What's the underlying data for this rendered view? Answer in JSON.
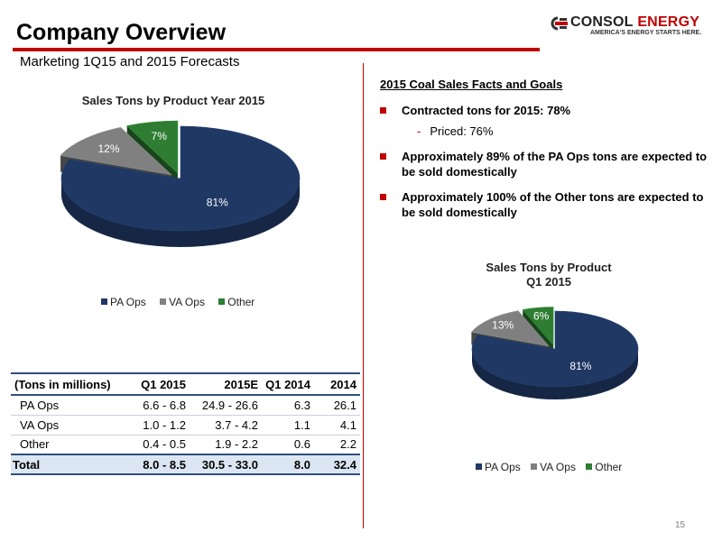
{
  "header": {
    "title": "Company Overview",
    "subtitle": "Marketing 1Q15 and 2015 Forecasts"
  },
  "logo": {
    "name_part1": "CONSOL",
    "name_part2": "ENERGY",
    "tagline": "AMERICA'S ENERGY STARTS HERE."
  },
  "colors": {
    "accent": "#c00000",
    "pa_ops": "#1f3864",
    "va_ops": "#808080",
    "other": "#2e7d32"
  },
  "chart_data": [
    {
      "type": "pie",
      "title": "Sales Tons by Product Year 2015",
      "categories": [
        "PA Ops",
        "VA Ops",
        "Other"
      ],
      "values": [
        81,
        12,
        7
      ],
      "data_labels": [
        "81%",
        "12%",
        "7%"
      ],
      "legend_position": "bottom"
    },
    {
      "type": "pie",
      "title": "Sales Tons by Product Q1 2015",
      "title_lines": [
        "Sales Tons by Product",
        "Q1 2015"
      ],
      "categories": [
        "PA Ops",
        "VA Ops",
        "Other"
      ],
      "values": [
        81,
        13,
        6
      ],
      "data_labels": [
        "81%",
        "13%",
        "6%"
      ],
      "legend_position": "bottom"
    },
    {
      "type": "table",
      "headers": [
        "(Tons in millions)",
        "Q1 2015",
        "2015E",
        "Q1 2014",
        "2014"
      ],
      "rows": [
        [
          "PA Ops",
          "6.6 - 6.8",
          "24.9 - 26.6",
          "6.3",
          "26.1"
        ],
        [
          "VA Ops",
          "1.0 - 1.2",
          "3.7 - 4.2",
          "1.1",
          "4.1"
        ],
        [
          "Other",
          "0.4 - 0.5",
          "1.9 - 2.2",
          "0.6",
          "2.2"
        ]
      ],
      "total": [
        "Total",
        "8.0 - 8.5",
        "30.5 - 33.0",
        "8.0",
        "32.4"
      ]
    }
  ],
  "facts": {
    "heading": "2015 Coal Sales Facts and Goals",
    "bullets": [
      "Contracted tons for 2015: 78%",
      "Approximately 89% of the PA Ops tons are expected to be sold domestically",
      "Approximately 100% of the Other tons are expected to be sold domestically"
    ],
    "sub_bullet": "Priced: 76%",
    "sub_dash": "-"
  },
  "page_number": "15"
}
